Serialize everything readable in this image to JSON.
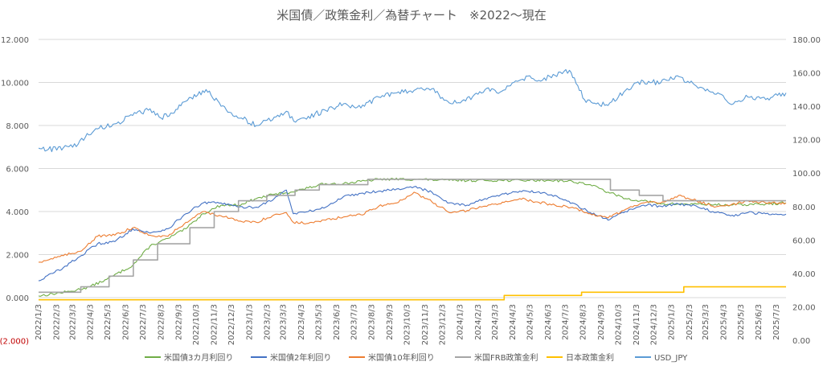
{
  "chart_data": {
    "type": "line",
    "title": "米国債／政策金利／為替チャート　※2022～現在",
    "grid": true,
    "legend_position": "bottom",
    "left_axis": {
      "ylim": [
        -2,
        12
      ],
      "ticks": [
        -2,
        0,
        2,
        4,
        6,
        8,
        10,
        12
      ],
      "tick_labels": [
        "(2.000)",
        "0.000",
        "2.000",
        "4.000",
        "6.000",
        "8.000",
        "10.000",
        "12.000"
      ]
    },
    "right_axis": {
      "ylim": [
        0,
        180
      ],
      "ticks": [
        0,
        20,
        40,
        60,
        80,
        100,
        120,
        140,
        160,
        180
      ],
      "tick_labels": [
        "0.00",
        "20.00",
        "40.00",
        "60.00",
        "80.00",
        "100.00",
        "120.00",
        "140.00",
        "160.00",
        "180.00"
      ]
    },
    "x_range": [
      "2022/1/3",
      "2025/7/20"
    ],
    "x_tick_labels": [
      "2022/1/3",
      "2022/2/3",
      "2022/3/3",
      "2022/4/3",
      "2022/5/3",
      "2022/6/3",
      "2022/7/3",
      "2022/8/3",
      "2022/9/3",
      "2022/10/3",
      "2022/11/3",
      "2022/12/3",
      "2023/1/3",
      "2023/2/3",
      "2023/3/3",
      "2023/4/3",
      "2023/5/3",
      "2023/6/3",
      "2023/7/3",
      "2023/8/3",
      "2023/9/3",
      "2023/10/3",
      "2023/11/3",
      "2023/12/3",
      "2024/1/3",
      "2024/2/3",
      "2024/3/3",
      "2024/4/3",
      "2024/5/3",
      "2024/6/3",
      "2024/7/3",
      "2024/8/3",
      "2024/9/3",
      "2024/10/3",
      "2024/11/3",
      "2024/12/3",
      "2025/1/3",
      "2025/2/3",
      "2025/3/3",
      "2025/4/3",
      "2025/5/3",
      "2025/6/3",
      "2025/7/3"
    ],
    "series": [
      {
        "name": "米国債3カ月利回り",
        "axis": "left",
        "color": "#70ad47",
        "style": "line",
        "points": [
          [
            "2022/1/3",
            0.08
          ],
          [
            "2022/3/1",
            0.3
          ],
          [
            "2022/4/1",
            0.5
          ],
          [
            "2022/5/1",
            0.85
          ],
          [
            "2022/6/15",
            1.5
          ],
          [
            "2022/7/15",
            2.4
          ],
          [
            "2022/8/15",
            2.75
          ],
          [
            "2022/9/15",
            3.2
          ],
          [
            "2022/10/15",
            3.9
          ],
          [
            "2022/11/15",
            4.3
          ],
          [
            "2022/12/15",
            4.3
          ],
          [
            "2023/1/15",
            4.6
          ],
          [
            "2023/2/15",
            4.8
          ],
          [
            "2023/3/15",
            4.9
          ],
          [
            "2023/4/15",
            5.1
          ],
          [
            "2023/5/15",
            5.3
          ],
          [
            "2023/6/15",
            5.3
          ],
          [
            "2023/7/15",
            5.4
          ],
          [
            "2023/8/15",
            5.5
          ],
          [
            "2023/10/15",
            5.5
          ],
          [
            "2023/12/15",
            5.45
          ],
          [
            "2024/3/15",
            5.45
          ],
          [
            "2024/6/15",
            5.45
          ],
          [
            "2024/7/15",
            5.4
          ],
          [
            "2024/8/15",
            5.25
          ],
          [
            "2024/9/15",
            4.9
          ],
          [
            "2024/10/15",
            4.6
          ],
          [
            "2024/11/15",
            4.5
          ],
          [
            "2024/12/15",
            4.35
          ],
          [
            "2025/2/15",
            4.35
          ],
          [
            "2025/4/15",
            4.3
          ],
          [
            "2025/6/15",
            4.35
          ],
          [
            "2025/7/20",
            4.4
          ]
        ]
      },
      {
        "name": "米国債2年利回り",
        "axis": "left",
        "color": "#4472c4",
        "style": "line",
        "points": [
          [
            "2022/1/3",
            0.78
          ],
          [
            "2022/2/15",
            1.4
          ],
          [
            "2022/3/15",
            1.9
          ],
          [
            "2022/4/15",
            2.5
          ],
          [
            "2022/5/15",
            2.6
          ],
          [
            "2022/6/15",
            3.2
          ],
          [
            "2022/7/15",
            3.0
          ],
          [
            "2022/8/15",
            3.2
          ],
          [
            "2022/9/15",
            3.9
          ],
          [
            "2022/10/15",
            4.4
          ],
          [
            "2022/11/15",
            4.4
          ],
          [
            "2022/12/15",
            4.2
          ],
          [
            "2023/1/15",
            4.2
          ],
          [
            "2023/2/15",
            4.6
          ],
          [
            "2023/3/8",
            5.0
          ],
          [
            "2023/3/20",
            3.9
          ],
          [
            "2023/4/15",
            4.0
          ],
          [
            "2023/5/15",
            4.2
          ],
          [
            "2023/6/15",
            4.7
          ],
          [
            "2023/7/15",
            4.85
          ],
          [
            "2023/8/15",
            4.95
          ],
          [
            "2023/9/15",
            5.05
          ],
          [
            "2023/10/15",
            5.15
          ],
          [
            "2023/11/15",
            4.9
          ],
          [
            "2023/12/15",
            4.4
          ],
          [
            "2024/1/15",
            4.3
          ],
          [
            "2024/2/15",
            4.6
          ],
          [
            "2024/4/15",
            4.95
          ],
          [
            "2024/5/15",
            4.9
          ],
          [
            "2024/6/15",
            4.75
          ],
          [
            "2024/7/15",
            4.4
          ],
          [
            "2024/8/15",
            3.95
          ],
          [
            "2024/9/15",
            3.6
          ],
          [
            "2024/10/15",
            4.0
          ],
          [
            "2024/11/15",
            4.3
          ],
          [
            "2024/12/15",
            4.25
          ],
          [
            "2025/1/15",
            4.35
          ],
          [
            "2025/2/15",
            4.25
          ],
          [
            "2025/3/15",
            4.0
          ],
          [
            "2025/4/15",
            3.8
          ],
          [
            "2025/5/15",
            3.95
          ],
          [
            "2025/6/15",
            3.9
          ],
          [
            "2025/7/20",
            3.88
          ]
        ]
      },
      {
        "name": "米国債10年利回り",
        "axis": "left",
        "color": "#ed7d31",
        "style": "line",
        "points": [
          [
            "2022/1/3",
            1.65
          ],
          [
            "2022/2/15",
            1.95
          ],
          [
            "2022/3/15",
            2.15
          ],
          [
            "2022/4/15",
            2.85
          ],
          [
            "2022/5/15",
            2.9
          ],
          [
            "2022/6/15",
            3.25
          ],
          [
            "2022/7/15",
            2.9
          ],
          [
            "2022/8/15",
            2.85
          ],
          [
            "2022/9/15",
            3.5
          ],
          [
            "2022/10/15",
            4.0
          ],
          [
            "2022/11/15",
            3.8
          ],
          [
            "2022/12/15",
            3.55
          ],
          [
            "2023/1/15",
            3.5
          ],
          [
            "2023/2/15",
            3.85
          ],
          [
            "2023/3/8",
            3.95
          ],
          [
            "2023/3/20",
            3.5
          ],
          [
            "2023/4/15",
            3.45
          ],
          [
            "2023/5/15",
            3.6
          ],
          [
            "2023/6/15",
            3.75
          ],
          [
            "2023/7/15",
            3.85
          ],
          [
            "2023/8/15",
            4.25
          ],
          [
            "2023/9/15",
            4.4
          ],
          [
            "2023/10/15",
            4.9
          ],
          [
            "2023/11/15",
            4.45
          ],
          [
            "2023/12/15",
            3.95
          ],
          [
            "2024/1/15",
            4.05
          ],
          [
            "2024/2/15",
            4.25
          ],
          [
            "2024/4/15",
            4.6
          ],
          [
            "2024/5/15",
            4.45
          ],
          [
            "2024/6/15",
            4.3
          ],
          [
            "2024/7/15",
            4.2
          ],
          [
            "2024/8/15",
            3.9
          ],
          [
            "2024/9/15",
            3.7
          ],
          [
            "2024/10/15",
            4.1
          ],
          [
            "2024/11/15",
            4.4
          ],
          [
            "2024/12/15",
            4.4
          ],
          [
            "2025/1/15",
            4.75
          ],
          [
            "2025/2/15",
            4.5
          ],
          [
            "2025/3/15",
            4.25
          ],
          [
            "2025/4/15",
            4.3
          ],
          [
            "2025/5/15",
            4.5
          ],
          [
            "2025/6/15",
            4.4
          ],
          [
            "2025/7/20",
            4.4
          ]
        ]
      },
      {
        "name": "米国FRB政策金利",
        "axis": "left",
        "color": "#a5a5a5",
        "style": "step",
        "points": [
          [
            "2022/1/3",
            0.25
          ],
          [
            "2022/3/17",
            0.5
          ],
          [
            "2022/5/5",
            1.0
          ],
          [
            "2022/6/16",
            1.75
          ],
          [
            "2022/7/28",
            2.5
          ],
          [
            "2022/9/22",
            3.25
          ],
          [
            "2022/11/3",
            4.0
          ],
          [
            "2022/12/15",
            4.5
          ],
          [
            "2023/2/2",
            4.75
          ],
          [
            "2023/3/23",
            5.0
          ],
          [
            "2023/5/4",
            5.25
          ],
          [
            "2023/7/27",
            5.5
          ],
          [
            "2024/9/19",
            5.0
          ],
          [
            "2024/11/8",
            4.75
          ],
          [
            "2024/12/19",
            4.5
          ],
          [
            "2025/7/20",
            4.5
          ]
        ]
      },
      {
        "name": "日本政策金利",
        "axis": "left",
        "color": "#ffc000",
        "style": "step",
        "points": [
          [
            "2022/1/3",
            -0.1
          ],
          [
            "2024/3/19",
            0.1
          ],
          [
            "2024/7/31",
            0.25
          ],
          [
            "2025/1/24",
            0.5
          ],
          [
            "2025/7/20",
            0.5
          ]
        ]
      },
      {
        "name": "USD_JPY",
        "axis": "right",
        "color": "#5b9bd5",
        "style": "line",
        "points": [
          [
            "2022/1/3",
            115.0
          ],
          [
            "2022/1/20",
            114.2
          ],
          [
            "2022/2/15",
            115.2
          ],
          [
            "2022/3/3",
            115.5
          ],
          [
            "2022/3/25",
            121.5
          ],
          [
            "2022/4/15",
            126.5
          ],
          [
            "2022/5/15",
            129.5
          ],
          [
            "2022/6/15",
            134.5
          ],
          [
            "2022/7/15",
            138.5
          ],
          [
            "2022/8/3",
            133.0
          ],
          [
            "2022/8/20",
            136.0
          ],
          [
            "2022/9/15",
            143.0
          ],
          [
            "2022/10/20",
            150.0
          ],
          [
            "2022/11/15",
            140.0
          ],
          [
            "2022/12/20",
            133.0
          ],
          [
            "2023/1/15",
            128.5
          ],
          [
            "2023/2/15",
            133.5
          ],
          [
            "2023/3/8",
            137.0
          ],
          [
            "2023/3/24",
            130.5
          ],
          [
            "2023/4/15",
            134.0
          ],
          [
            "2023/5/15",
            137.5
          ],
          [
            "2023/6/15",
            141.5
          ],
          [
            "2023/7/15",
            139.0
          ],
          [
            "2023/8/15",
            145.5
          ],
          [
            "2023/9/15",
            148.0
          ],
          [
            "2023/10/15",
            149.5
          ],
          [
            "2023/11/15",
            150.5
          ],
          [
            "2023/12/15",
            142.0
          ],
          [
            "2024/1/3",
            142.0
          ],
          [
            "2024/2/15",
            150.0
          ],
          [
            "2024/3/15",
            149.0
          ],
          [
            "2024/4/29",
            158.0
          ],
          [
            "2024/5/15",
            155.0
          ],
          [
            "2024/6/15",
            158.5
          ],
          [
            "2024/7/10",
            161.5
          ],
          [
            "2024/8/5",
            144.0
          ],
          [
            "2024/9/15",
            140.5
          ],
          [
            "2024/10/15",
            149.5
          ],
          [
            "2024/11/15",
            155.0
          ],
          [
            "2024/12/15",
            154.0
          ],
          [
            "2025/1/10",
            158.0
          ],
          [
            "2025/2/15",
            152.0
          ],
          [
            "2025/3/15",
            148.5
          ],
          [
            "2025/4/20",
            141.5
          ],
          [
            "2025/5/15",
            145.5
          ],
          [
            "2025/6/15",
            144.0
          ],
          [
            "2025/7/20",
            148.0
          ]
        ]
      }
    ]
  }
}
